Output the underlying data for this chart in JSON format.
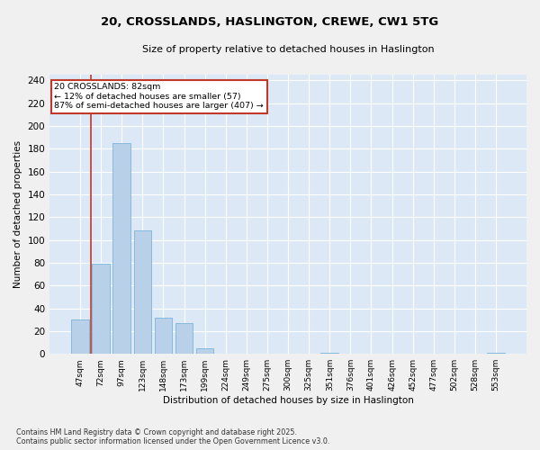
{
  "title_line1": "20, CROSSLANDS, HASLINGTON, CREWE, CW1 5TG",
  "title_line2": "Size of property relative to detached houses in Haslington",
  "xlabel": "Distribution of detached houses by size in Haslington",
  "ylabel": "Number of detached properties",
  "categories": [
    "47sqm",
    "72sqm",
    "97sqm",
    "123sqm",
    "148sqm",
    "173sqm",
    "199sqm",
    "224sqm",
    "249sqm",
    "275sqm",
    "300sqm",
    "325sqm",
    "351sqm",
    "376sqm",
    "401sqm",
    "426sqm",
    "452sqm",
    "477sqm",
    "502sqm",
    "528sqm",
    "553sqm"
  ],
  "values": [
    30,
    79,
    185,
    108,
    32,
    27,
    5,
    0,
    0,
    0,
    0,
    0,
    1,
    0,
    0,
    0,
    0,
    0,
    0,
    0,
    1
  ],
  "bar_color": "#b8d0e8",
  "bar_edge_color": "#6aaed6",
  "vline_color": "#c0392b",
  "annotation_text": "20 CROSSLANDS: 82sqm\n← 12% of detached houses are smaller (57)\n87% of semi-detached houses are larger (407) →",
  "annotation_box_color": "#ffffff",
  "annotation_box_edge": "#c0392b",
  "ylim": [
    0,
    245
  ],
  "yticks": [
    0,
    20,
    40,
    60,
    80,
    100,
    120,
    140,
    160,
    180,
    200,
    220,
    240
  ],
  "background_color": "#dce8f5",
  "grid_color": "#ffffff",
  "fig_bg_color": "#f0f0f0",
  "footer_line1": "Contains HM Land Registry data © Crown copyright and database right 2025.",
  "footer_line2": "Contains public sector information licensed under the Open Government Licence v3.0."
}
